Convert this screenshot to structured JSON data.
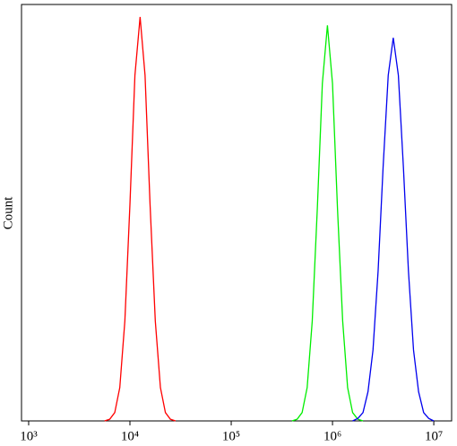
{
  "chart_data": {
    "type": "line",
    "y_label": "Count",
    "x_log": true,
    "xlim": [
      850,
      15000000
    ],
    "ylim": [
      0,
      100
    ],
    "xticks": [
      {
        "value": 1000,
        "label": "10³"
      },
      {
        "value": 10000,
        "label": "10⁴"
      },
      {
        "value": 100000,
        "label": "10⁵"
      },
      {
        "value": 1000000,
        "label": "10⁶"
      },
      {
        "value": 10000000,
        "label": "10⁷"
      }
    ],
    "x": [
      5010,
      5620,
      6310,
      7080,
      7940,
      8910,
      10000,
      11200,
      12600,
      14100,
      15800,
      17800,
      20000,
      22400,
      25100,
      28200,
      31600,
      35500,
      39800,
      44700,
      50100,
      56200,
      63100,
      70800,
      79400,
      89100,
      100000,
      112000,
      126000,
      141000,
      158000,
      178000,
      200000,
      224000,
      251000,
      282000,
      316000,
      355000,
      398000,
      447000,
      501000,
      562000,
      631000,
      708000,
      794000,
      891000,
      1000000,
      1120000,
      1260000,
      1410000,
      1580000,
      1780000,
      2000000,
      2240000,
      2510000,
      2820000,
      3160000,
      3550000,
      3980000,
      4470000,
      5010000,
      5620000,
      6310000,
      7080000,
      7940000,
      8910000,
      10000000,
      11200000
    ],
    "series": [
      {
        "color": "#ff0000",
        "values": [
          null,
          0,
          0.4,
          2,
          8,
          24,
          52,
          83,
          97,
          83,
          52,
          24,
          8,
          2,
          0.4,
          0,
          null,
          null,
          null,
          null,
          null,
          null,
          null,
          null,
          null,
          null,
          null,
          null,
          null,
          null,
          null,
          null,
          null,
          null,
          null,
          null,
          null,
          null,
          null,
          null,
          null,
          null,
          null,
          null,
          null,
          null,
          null,
          null,
          null,
          null,
          null,
          null,
          null,
          null,
          null,
          null,
          null,
          null,
          null,
          null,
          null,
          null,
          null,
          null,
          null,
          null,
          null,
          null
        ]
      },
      {
        "color": "#00ee00",
        "values": [
          null,
          null,
          null,
          null,
          null,
          null,
          null,
          null,
          null,
          null,
          null,
          null,
          null,
          null,
          null,
          null,
          null,
          null,
          null,
          null,
          null,
          null,
          null,
          null,
          null,
          null,
          null,
          null,
          null,
          null,
          null,
          null,
          null,
          null,
          null,
          null,
          null,
          null,
          0,
          0.4,
          2,
          8,
          24,
          51,
          81,
          95,
          81,
          51,
          24,
          8,
          2,
          0.4,
          0,
          null,
          null,
          null,
          null,
          null,
          null,
          null,
          null,
          null,
          null,
          null,
          null,
          null,
          null,
          null
        ]
      },
      {
        "color": "#0000ee",
        "values": [
          null,
          null,
          null,
          null,
          null,
          null,
          null,
          null,
          null,
          null,
          null,
          null,
          null,
          null,
          null,
          null,
          null,
          null,
          null,
          null,
          null,
          null,
          null,
          null,
          null,
          null,
          null,
          null,
          null,
          null,
          null,
          null,
          null,
          null,
          null,
          null,
          null,
          null,
          null,
          null,
          null,
          null,
          null,
          null,
          null,
          null,
          null,
          null,
          null,
          null,
          0,
          0.6,
          2,
          7,
          17,
          36,
          61,
          83,
          92,
          83,
          61,
          36,
          17,
          7,
          2,
          0.6,
          0,
          null
        ]
      }
    ]
  }
}
